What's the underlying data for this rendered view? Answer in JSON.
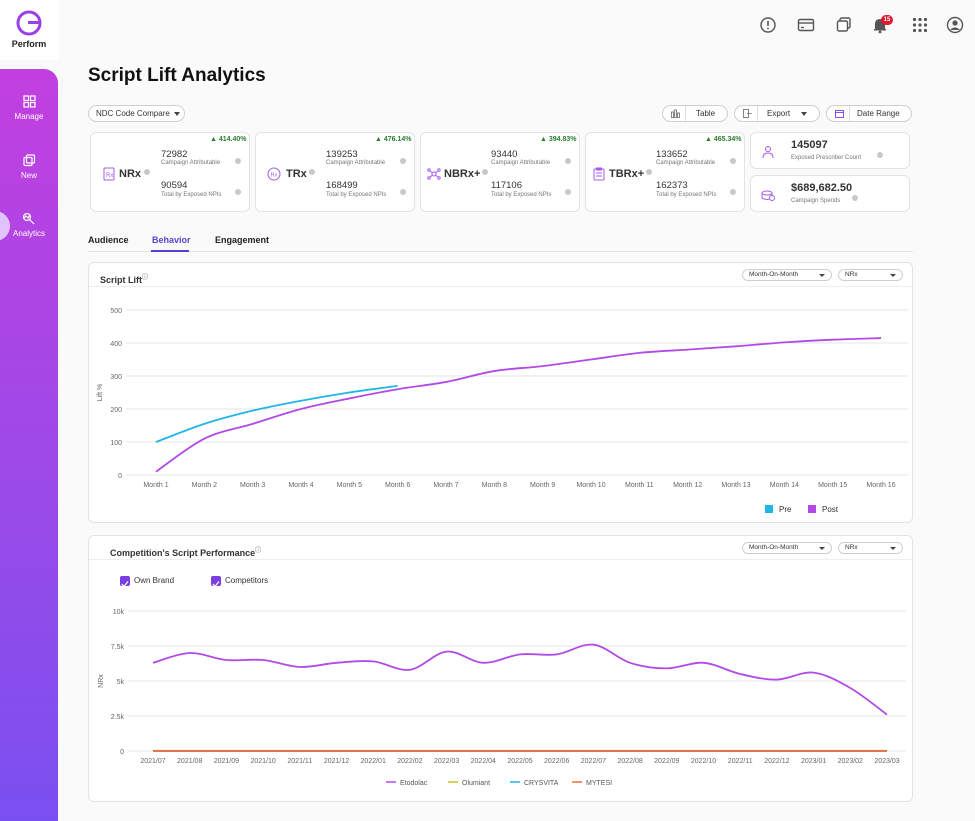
{
  "brand": {
    "name": "Perform"
  },
  "sidebar": {
    "items": [
      {
        "label": "Manage",
        "icon": "grid-icon"
      },
      {
        "label": "New",
        "icon": "copy-icon"
      },
      {
        "label": "Analytics",
        "icon": "analytics-icon",
        "active": true
      }
    ]
  },
  "topbar": {
    "notification_count": "15",
    "icons": [
      "alert-icon",
      "card-icon",
      "copy-icon",
      "bell-icon",
      "apps-icon",
      "user-icon"
    ]
  },
  "page": {
    "title": "Script Lift Analytics",
    "compare_select": "NDC Code Compare",
    "table_label": "Table",
    "export_label": "Export",
    "date_range_label": "Date Range"
  },
  "kpis": [
    {
      "name": "NRx",
      "change": "414.40%",
      "attr_value": "72982",
      "attr_label": "Campaign Attributable",
      "total_value": "90594",
      "total_label": "Total by Exposed NPIs"
    },
    {
      "name": "TRx",
      "change": "476.14%",
      "attr_value": "139253",
      "attr_label": "Campaign Attributable",
      "total_value": "168499",
      "total_label": "Total by Exposed NPIs"
    },
    {
      "name": "NBRx+",
      "change": "394.83%",
      "attr_value": "93440",
      "attr_label": "Campaign Attributable",
      "total_value": "117106",
      "total_label": "Total by Exposed NPIs"
    },
    {
      "name": "TBRx+",
      "change": "465.34%",
      "attr_value": "133652",
      "attr_label": "Campaign Attributable",
      "total_value": "162373",
      "total_label": "Total by Exposed NPIs"
    }
  ],
  "summary": {
    "prescriber_value": "145097",
    "prescriber_label": "Exposed Prescriber Count",
    "spend_value": "$689,682.50",
    "spend_label": "Campaign Spends"
  },
  "tabs": [
    {
      "label": "Audience"
    },
    {
      "label": "Behavior",
      "active": true
    },
    {
      "label": "Engagement"
    }
  ],
  "script_lift": {
    "title": "Script Lift",
    "period_select": "Month-On-Month",
    "metric_select": "NRx"
  },
  "competition": {
    "title": "Competition's Script Performance",
    "period_select": "Month-On-Month",
    "metric_select": "NRx",
    "filters": [
      {
        "label": "Own Brand",
        "checked": true
      },
      {
        "label": "Competitors",
        "checked": true
      }
    ]
  },
  "chart_data": [
    {
      "type": "line",
      "title": "Script Lift",
      "xlabel": "",
      "ylabel": "Lift %",
      "ylim": [
        0,
        500
      ],
      "yticks": [
        0,
        100,
        200,
        300,
        400,
        500
      ],
      "categories": [
        "Month 1",
        "Month 2",
        "Month 3",
        "Month 4",
        "Month 5",
        "Month 6",
        "Month 7",
        "Month 8",
        "Month 9",
        "Month 10",
        "Month 11",
        "Month 12",
        "Month 13",
        "Month 14",
        "Month 15",
        "Month 16"
      ],
      "series": [
        {
          "name": "Pre",
          "color": "#1fb6e8",
          "values": [
            100,
            155,
            195,
            225,
            250,
            270,
            null,
            null,
            null,
            null,
            null,
            null,
            null,
            null,
            null,
            null
          ]
        },
        {
          "name": "Post",
          "color": "#b14ae6",
          "values": [
            10,
            110,
            155,
            200,
            232,
            260,
            282,
            315,
            330,
            350,
            370,
            380,
            390,
            402,
            410,
            415
          ]
        }
      ],
      "grid": true,
      "legend": "bottom-right"
    },
    {
      "type": "line",
      "title": "Competition's Script Performance",
      "xlabel": "",
      "ylabel": "NRx",
      "ylim": [
        0,
        10000
      ],
      "yticks": [
        0,
        2500,
        5000,
        7500,
        10000
      ],
      "ytick_labels": [
        "0",
        "2.5k",
        "5k",
        "7.5k",
        "10k"
      ],
      "categories": [
        "2021/07",
        "2021/08",
        "2021/09",
        "2021/10",
        "2021/11",
        "2021/12",
        "2022/01",
        "2022/02",
        "2022/03",
        "2022/04",
        "2022/05",
        "2022/06",
        "2022/07",
        "2022/08",
        "2022/09",
        "2022/10",
        "2022/11",
        "2022/12",
        "2023/01",
        "2023/02",
        "2023/03"
      ],
      "series": [
        {
          "name": "Etodolac",
          "color": "#b14ae6",
          "values": [
            6300,
            7000,
            6500,
            6500,
            6000,
            6300,
            6400,
            5800,
            7100,
            6300,
            6900,
            6900,
            7600,
            6300,
            5900,
            6300,
            5500,
            5100,
            5600,
            4500,
            2600
          ]
        },
        {
          "name": "Olumiant",
          "color": "#c7c21f",
          "values": [
            20,
            20,
            20,
            20,
            20,
            20,
            20,
            20,
            20,
            20,
            20,
            20,
            20,
            20,
            20,
            20,
            20,
            20,
            20,
            20,
            20
          ]
        },
        {
          "name": "CRYSVITA",
          "color": "#1fb6e8",
          "values": [
            0,
            0,
            0,
            0,
            0,
            0,
            0,
            0,
            0,
            0,
            0,
            0,
            0,
            0,
            0,
            0,
            0,
            0,
            0,
            0,
            0
          ]
        },
        {
          "name": "MYTESI",
          "color": "#f26b3a",
          "values": [
            10,
            10,
            10,
            10,
            10,
            10,
            10,
            10,
            10,
            10,
            10,
            10,
            10,
            10,
            10,
            10,
            10,
            10,
            10,
            10,
            10
          ]
        }
      ],
      "grid": true,
      "legend": "bottom"
    }
  ]
}
